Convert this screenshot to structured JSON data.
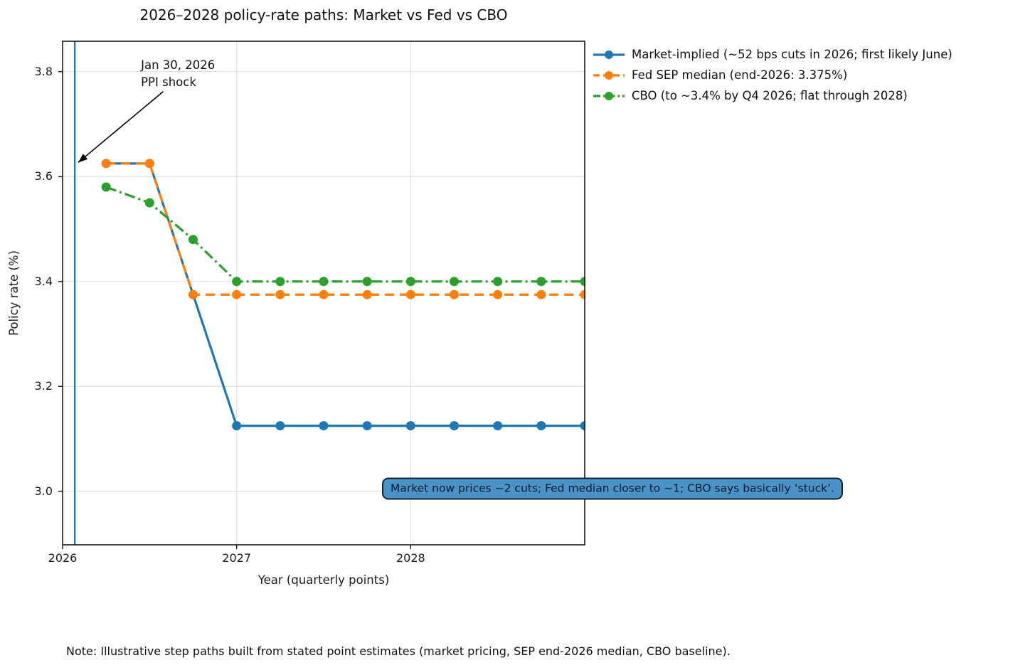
{
  "chart_data": {
    "type": "line",
    "title": "2026–2028 policy-rate paths: Market vs Fed vs CBO",
    "xlabel": "Year (quarterly points)",
    "ylabel": "Policy rate (%)",
    "xlim": [
      2026.0,
      2029.0
    ],
    "ylim": [
      2.898,
      3.858
    ],
    "x_ticks": [
      2026,
      2027,
      2028
    ],
    "y_ticks": [
      3.0,
      3.2,
      3.4,
      3.6,
      3.8
    ],
    "grid": true,
    "legend_position": "outside-top-right",
    "x": [
      2026.25,
      2026.5,
      2026.75,
      2027.0,
      2027.25,
      2027.5,
      2027.75,
      2028.0,
      2028.25,
      2028.5,
      2028.75,
      2029.0
    ],
    "series": [
      {
        "name": "market_implied",
        "label": "Market-implied (~52 bps cuts in 2026; first likely June)",
        "color": "#1f77b4",
        "linestyle": "solid",
        "values": [
          3.625,
          3.625,
          3.375,
          3.125,
          3.125,
          3.125,
          3.125,
          3.125,
          3.125,
          3.125,
          3.125,
          3.125
        ]
      },
      {
        "name": "fed_sep_median",
        "label": "Fed SEP median (end-2026: 3.375%)",
        "color": "#ff7f0e",
        "linestyle": "dashed",
        "values": [
          3.625,
          3.625,
          3.375,
          3.375,
          3.375,
          3.375,
          3.375,
          3.375,
          3.375,
          3.375,
          3.375,
          3.375
        ]
      },
      {
        "name": "cbo",
        "label": "CBO (to ~3.4% by Q4 2026; flat through 2028)",
        "color": "#2ca02c",
        "linestyle": "dashdot",
        "values": [
          3.58,
          3.55,
          3.48,
          3.4,
          3.4,
          3.4,
          3.4,
          3.4,
          3.4,
          3.4,
          3.4,
          3.4
        ]
      }
    ],
    "event_line": {
      "x": 2026.07,
      "color": "#1f77b4"
    },
    "annotations": {
      "event": {
        "text": "Jan 30, 2026\nPPI shock",
        "text_x": 2026.45,
        "text_y": 3.828,
        "arrow_from_x": 2026.578,
        "arrow_from_y": 3.762,
        "arrow_to_x": 2026.09,
        "arrow_to_y": 3.627,
        "arrow_color": "#000000"
      },
      "callout": {
        "text": "Market now prices ~2 cuts; Fed median closer to ~1; CBO says basically ‘stuck’.",
        "x": 2027.835,
        "y": 3.005,
        "fill_color": "#4b92c7",
        "border_color": "#0d2233",
        "text_color": "#06192c"
      }
    }
  },
  "footnote": "Note: Illustrative step paths built from stated point estimates (market pricing, SEP end-2026 median, CBO baseline)."
}
